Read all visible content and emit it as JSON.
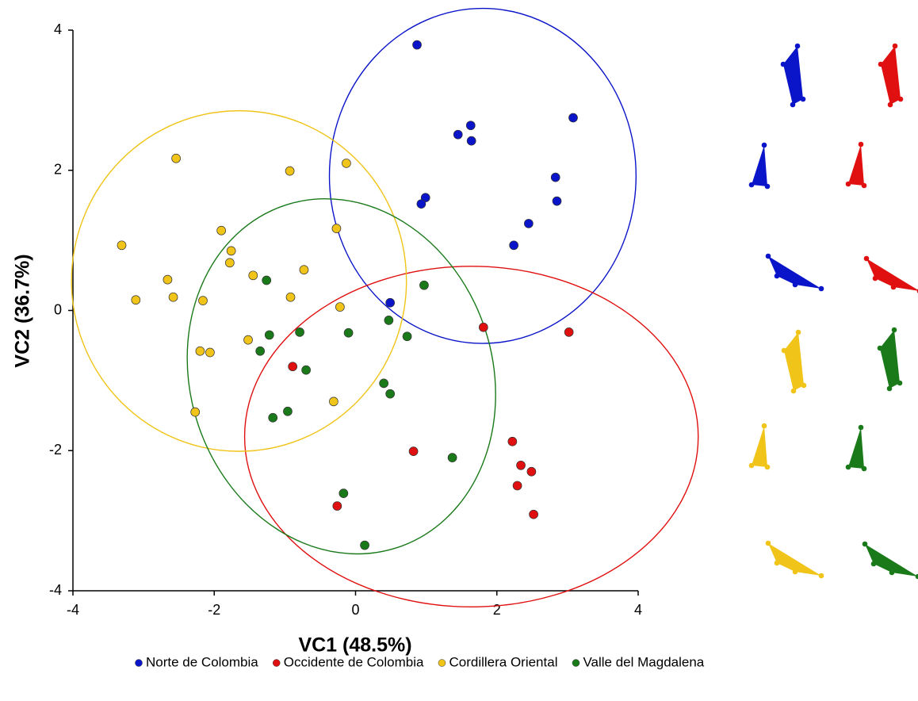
{
  "chart_data": {
    "type": "scatter",
    "xlabel": "VC1 (48.5%)",
    "ylabel": "VC2 (36.7%)",
    "xlim": [
      -4,
      4
    ],
    "ylim": [
      -4,
      4
    ],
    "xticks": [
      -4,
      -2,
      0,
      2,
      4
    ],
    "yticks": [
      -4,
      -2,
      0,
      2,
      4
    ],
    "series": [
      {
        "name": "Norte de Colombia",
        "color": "#0a14c8",
        "x": [
          0.87,
          1.45,
          1.63,
          1.64,
          3.08,
          2.83,
          2.85,
          0.99,
          0.93,
          2.45,
          2.24,
          0.49
        ],
        "values": [
          3.79,
          2.51,
          2.64,
          2.42,
          2.75,
          1.9,
          1.56,
          1.61,
          1.52,
          1.24,
          0.93,
          0.11
        ],
        "ellipse": {
          "cx": 1.8,
          "cy": 1.92,
          "rx": 2.17,
          "ry": 2.39,
          "angle": 0
        }
      },
      {
        "name": "Occidente de Colombia",
        "color": "#e01010",
        "x": [
          1.81,
          3.02,
          -0.89,
          0.82,
          2.22,
          2.34,
          2.49,
          2.29,
          2.52,
          -0.26
        ],
        "values": [
          -0.24,
          -0.31,
          -0.8,
          -2.01,
          -1.87,
          -2.21,
          -2.3,
          -2.5,
          -2.91,
          -2.79
        ],
        "ellipse": {
          "cx": 1.64,
          "cy": -1.8,
          "rx": 3.21,
          "ry": 2.43,
          "angle": 0
        }
      },
      {
        "name": "Cordillera Oriental",
        "color": "#f0c419",
        "x": [
          -2.54,
          -0.93,
          -0.13,
          -3.31,
          -1.9,
          -0.27,
          -1.76,
          -1.78,
          -1.45,
          -0.73,
          -2.66,
          -3.11,
          -2.58,
          -2.16,
          -0.92,
          -0.22,
          -1.52,
          -2.2,
          -2.06,
          -2.27,
          -0.31
        ],
        "values": [
          2.17,
          1.99,
          2.1,
          0.93,
          1.14,
          1.17,
          0.85,
          0.68,
          0.5,
          0.58,
          0.44,
          0.15,
          0.19,
          0.14,
          0.19,
          0.05,
          -0.42,
          -0.58,
          -0.6,
          -1.45,
          -1.3
        ],
        "ellipse": {
          "cx": -1.65,
          "cy": 0.42,
          "rx": 2.37,
          "ry": 2.43,
          "angle": 0
        }
      },
      {
        "name": "Valle del Magdalena",
        "color": "#1a7a1a",
        "x": [
          -1.26,
          0.97,
          0.47,
          -0.79,
          -1.22,
          -0.1,
          0.73,
          -1.35,
          -0.7,
          0.4,
          0.49,
          -0.96,
          -1.17,
          1.37,
          -0.17,
          0.13
        ],
        "values": [
          0.43,
          0.36,
          -0.14,
          -0.31,
          -0.35,
          -0.32,
          -0.37,
          -0.58,
          -0.85,
          -1.04,
          -1.19,
          -1.44,
          -1.53,
          -2.1,
          -2.61,
          -3.35
        ],
        "ellipse": {
          "cx": -0.2,
          "cy": -0.94,
          "rx": 2.14,
          "ry": 2.57,
          "angle": 18
        }
      }
    ]
  }
}
